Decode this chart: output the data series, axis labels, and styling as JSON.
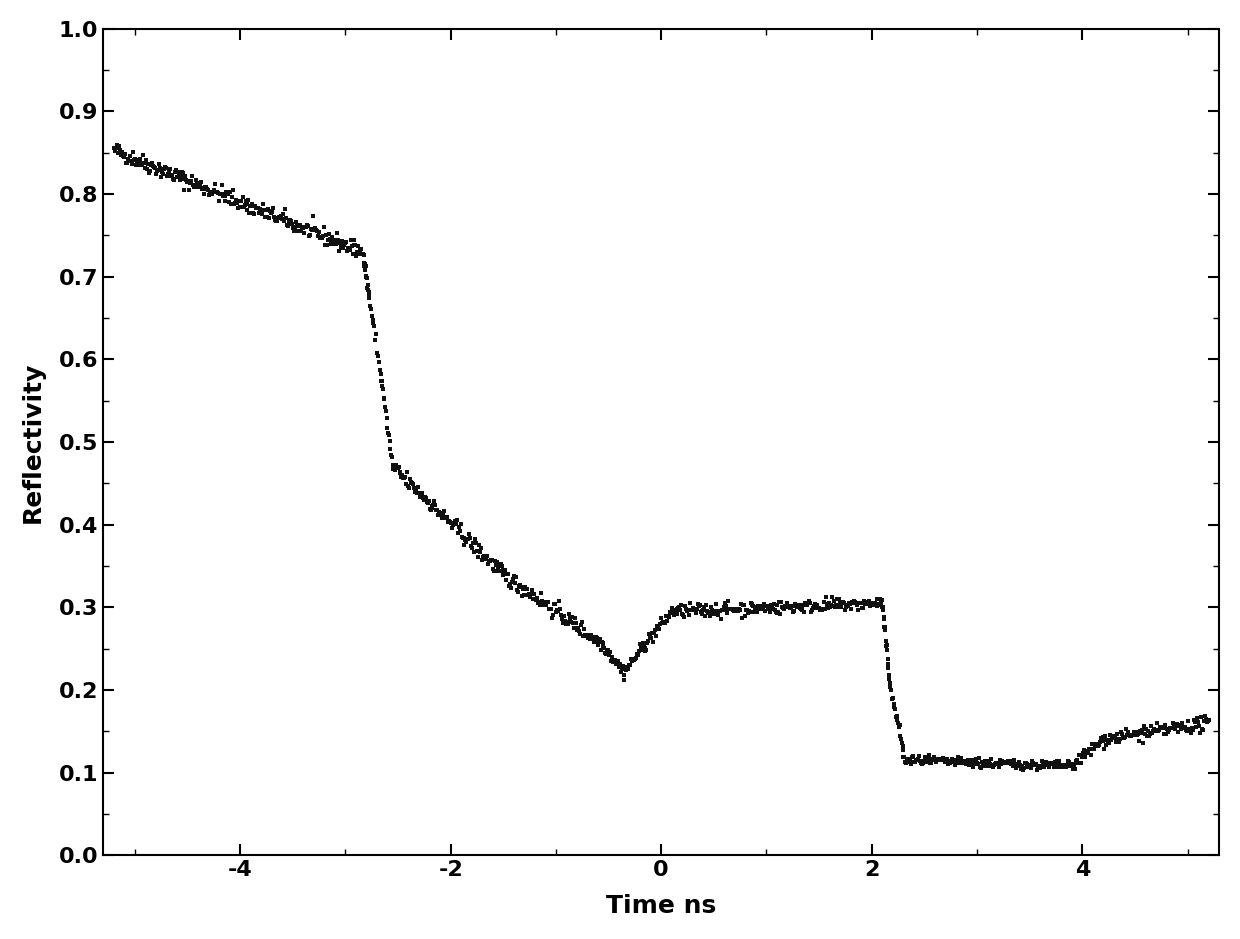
{
  "title": "",
  "xlabel": "Time ns",
  "ylabel": "Reflectivity",
  "xlim": [
    -5.3,
    5.3
  ],
  "ylim": [
    0.0,
    1.0
  ],
  "xticks": [
    -4,
    -2,
    0,
    2,
    4
  ],
  "yticks": [
    0.0,
    0.1,
    0.2,
    0.3,
    0.4,
    0.5,
    0.6,
    0.7,
    0.8,
    0.9,
    1.0
  ],
  "marker_color": "#111111",
  "marker_size": 6,
  "background_color": "#ffffff",
  "xlabel_fontsize": 18,
  "ylabel_fontsize": 18,
  "tick_fontsize": 16
}
